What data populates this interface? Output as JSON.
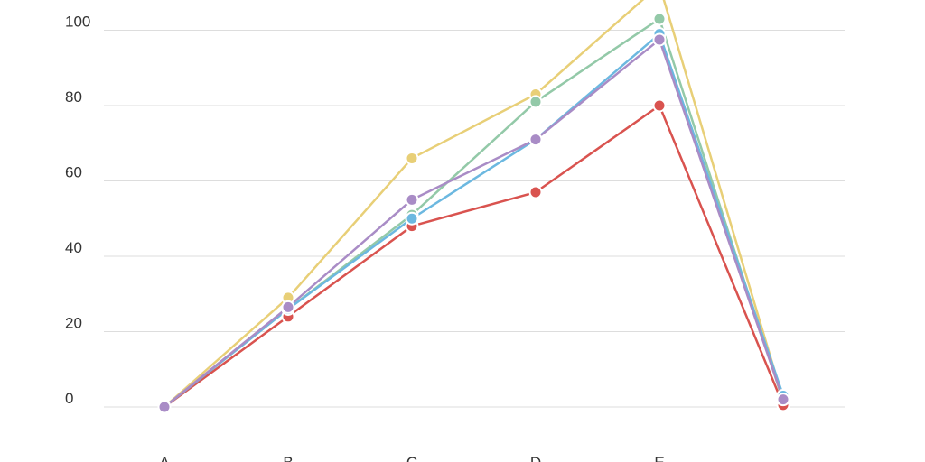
{
  "chart_data": {
    "type": "line",
    "title": "",
    "xlabel": "",
    "ylabel": "",
    "categories": [
      "A",
      "B",
      "C",
      "D",
      "E",
      ""
    ],
    "y_ticks": [
      0,
      20,
      40,
      60,
      80,
      100
    ],
    "ylim": [
      -10,
      112
    ],
    "grid": true,
    "legend": "none",
    "series": [
      {
        "color": "#e8cf77",
        "values": [
          0,
          29,
          66,
          83,
          112,
          2
        ]
      },
      {
        "color": "#93c9a8",
        "values": [
          0,
          26,
          51,
          81,
          103,
          1.5
        ]
      },
      {
        "color": "#d9534f",
        "values": [
          0,
          24,
          48,
          57,
          80,
          0.5
        ]
      },
      {
        "color": "#6cb8e0",
        "values": [
          0,
          26,
          50,
          71,
          99,
          3
        ]
      },
      {
        "color": "#a98cc6",
        "values": [
          0,
          26.5,
          55,
          71,
          97.5,
          2
        ]
      }
    ]
  }
}
